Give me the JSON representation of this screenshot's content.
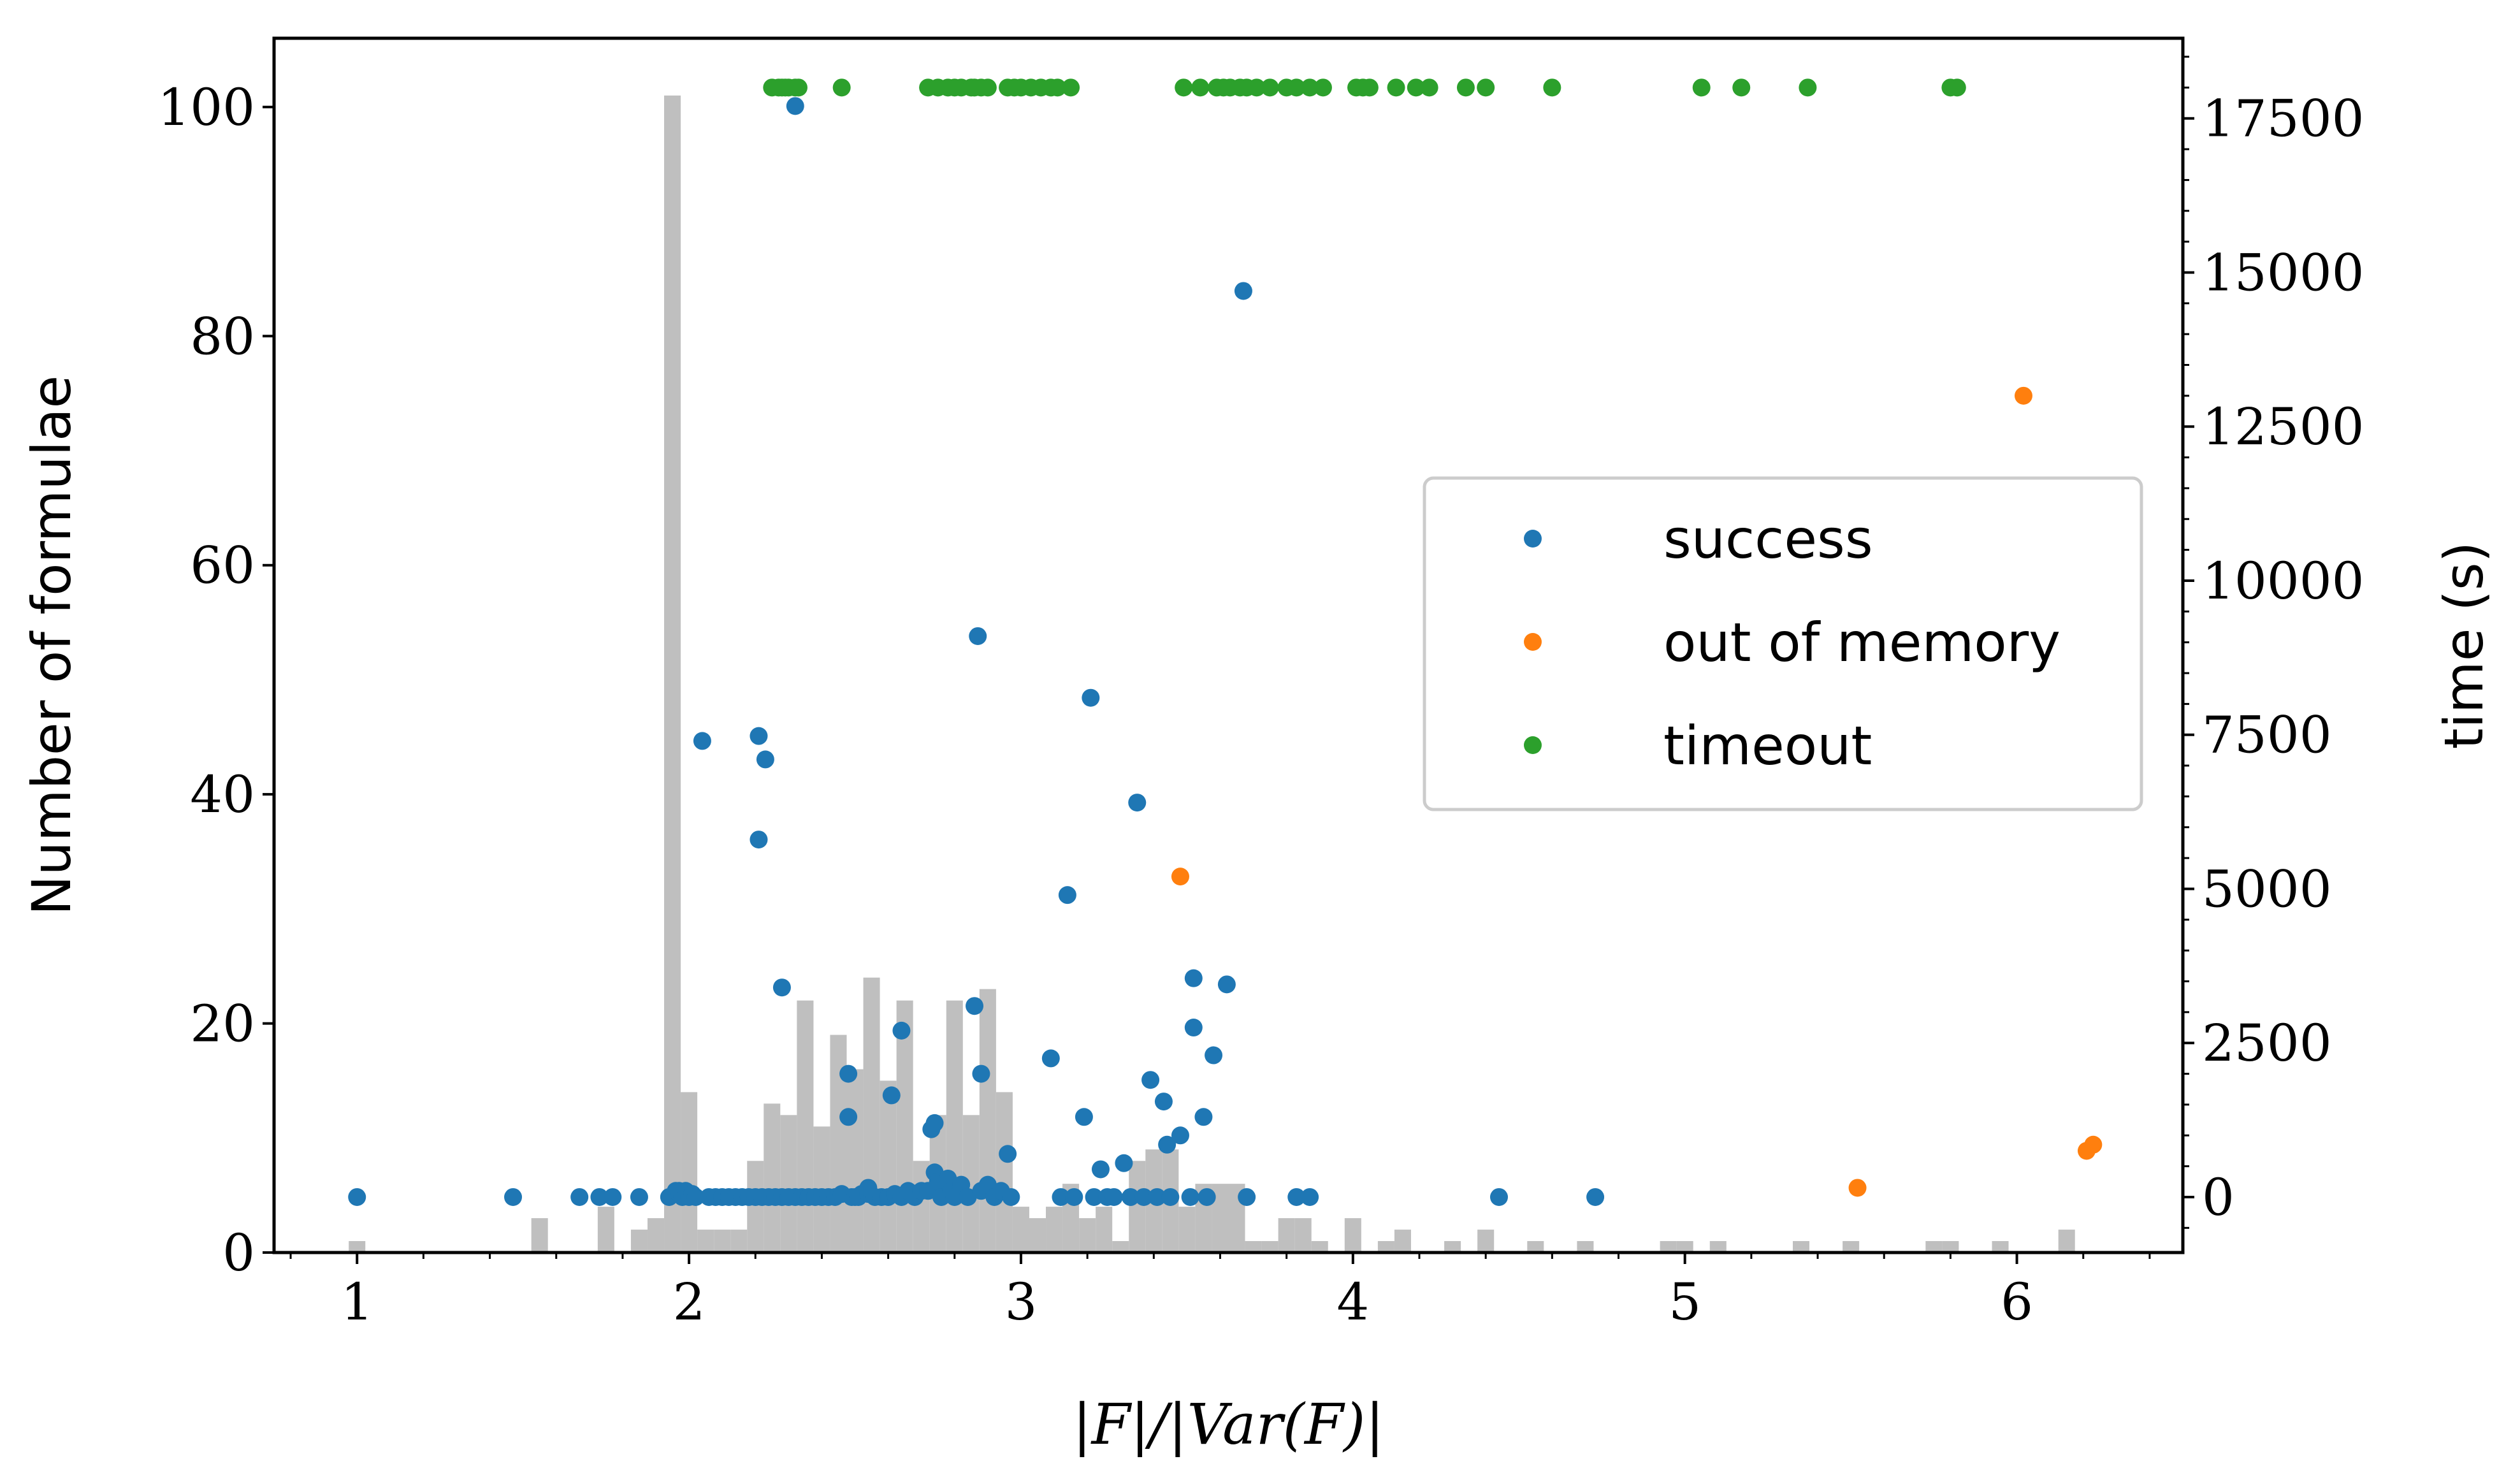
{
  "chart_data": {
    "type": "scatter",
    "xlabel": "|F|/|Var(F)|",
    "ylabel_left": "Number of formulae",
    "ylabel_right": "time (s)",
    "xlim": [
      0.75,
      6.5
    ],
    "ylim_left": [
      0,
      106
    ],
    "ylim_right": [
      -900,
      18800
    ],
    "x_ticks": [
      1,
      2,
      3,
      4,
      5,
      6
    ],
    "x_tick_labels": [
      "1",
      "2",
      "3",
      "4",
      "5",
      "6"
    ],
    "y_left_ticks": [
      0,
      20,
      40,
      60,
      80,
      100
    ],
    "y_left_tick_labels": [
      "0",
      "20",
      "40",
      "60",
      "80",
      "100"
    ],
    "y_right_ticks": [
      0,
      2500,
      5000,
      7500,
      10000,
      12500,
      15000,
      17500
    ],
    "y_right_tick_labels": [
      "0",
      "2500",
      "5000",
      "7500",
      "10000",
      "12500",
      "15000",
      "17500"
    ],
    "grid": false,
    "legend_position": "center-right",
    "histogram": {
      "color": "#bfbfbf",
      "bin_width": 0.05,
      "bins": [
        [
          1.0,
          1
        ],
        [
          1.55,
          3
        ],
        [
          1.75,
          4
        ],
        [
          1.85,
          2
        ],
        [
          1.9,
          3
        ],
        [
          1.95,
          101
        ],
        [
          2.0,
          14
        ],
        [
          2.05,
          2
        ],
        [
          2.1,
          2
        ],
        [
          2.15,
          2
        ],
        [
          2.2,
          8
        ],
        [
          2.25,
          13
        ],
        [
          2.3,
          12
        ],
        [
          2.35,
          22
        ],
        [
          2.4,
          11
        ],
        [
          2.45,
          19
        ],
        [
          2.5,
          16
        ],
        [
          2.55,
          24
        ],
        [
          2.6,
          15
        ],
        [
          2.65,
          22
        ],
        [
          2.7,
          8
        ],
        [
          2.75,
          12
        ],
        [
          2.8,
          22
        ],
        [
          2.85,
          12
        ],
        [
          2.9,
          23
        ],
        [
          2.95,
          14
        ],
        [
          3.0,
          4
        ],
        [
          3.05,
          3
        ],
        [
          3.1,
          4
        ],
        [
          3.15,
          6
        ],
        [
          3.2,
          3
        ],
        [
          3.25,
          4
        ],
        [
          3.3,
          1
        ],
        [
          3.35,
          8
        ],
        [
          3.4,
          9
        ],
        [
          3.45,
          9
        ],
        [
          3.5,
          4
        ],
        [
          3.55,
          6
        ],
        [
          3.6,
          6
        ],
        [
          3.65,
          6
        ],
        [
          3.7,
          1
        ],
        [
          3.75,
          1
        ],
        [
          3.8,
          3
        ],
        [
          3.85,
          3
        ],
        [
          3.9,
          1
        ],
        [
          4.0,
          3
        ],
        [
          4.1,
          1
        ],
        [
          4.15,
          2
        ],
        [
          4.3,
          1
        ],
        [
          4.4,
          2
        ],
        [
          4.55,
          1
        ],
        [
          4.7,
          1
        ],
        [
          4.95,
          1
        ],
        [
          5.0,
          1
        ],
        [
          5.1,
          1
        ],
        [
          5.35,
          1
        ],
        [
          5.5,
          1
        ],
        [
          5.75,
          1
        ],
        [
          5.8,
          1
        ],
        [
          5.95,
          1
        ],
        [
          6.15,
          2
        ]
      ]
    },
    "series": [
      {
        "name": "success",
        "color": "#1f77b4",
        "points": [
          [
            1.0,
            0
          ],
          [
            1.47,
            0
          ],
          [
            1.67,
            0
          ],
          [
            1.73,
            0
          ],
          [
            1.77,
            0
          ],
          [
            1.85,
            0
          ],
          [
            1.94,
            0
          ],
          [
            1.96,
            100
          ],
          [
            1.97,
            100
          ],
          [
            1.98,
            0
          ],
          [
            1.99,
            100
          ],
          [
            2.0,
            0
          ],
          [
            2.01,
            50
          ],
          [
            2.02,
            0
          ],
          [
            2.04,
            7400
          ],
          [
            2.06,
            0
          ],
          [
            2.08,
            0
          ],
          [
            2.1,
            0
          ],
          [
            2.12,
            0
          ],
          [
            2.14,
            0
          ],
          [
            2.16,
            0
          ],
          [
            2.18,
            0
          ],
          [
            2.2,
            0
          ],
          [
            2.21,
            7480
          ],
          [
            2.21,
            5800
          ],
          [
            2.22,
            0
          ],
          [
            2.23,
            7100
          ],
          [
            2.24,
            0
          ],
          [
            2.26,
            0
          ],
          [
            2.28,
            3400
          ],
          [
            2.28,
            0
          ],
          [
            2.3,
            0
          ],
          [
            2.32,
            17700
          ],
          [
            2.32,
            0
          ],
          [
            2.34,
            0
          ],
          [
            2.36,
            0
          ],
          [
            2.38,
            0
          ],
          [
            2.4,
            0
          ],
          [
            2.42,
            0
          ],
          [
            2.44,
            0
          ],
          [
            2.46,
            50
          ],
          [
            2.48,
            2000
          ],
          [
            2.48,
            1300
          ],
          [
            2.49,
            0
          ],
          [
            2.5,
            0
          ],
          [
            2.51,
            0
          ],
          [
            2.52,
            50
          ],
          [
            2.54,
            50
          ],
          [
            2.54,
            150
          ],
          [
            2.56,
            0
          ],
          [
            2.58,
            0
          ],
          [
            2.6,
            0
          ],
          [
            2.61,
            1650
          ],
          [
            2.62,
            50
          ],
          [
            2.64,
            2700
          ],
          [
            2.64,
            0
          ],
          [
            2.66,
            100
          ],
          [
            2.68,
            0
          ],
          [
            2.7,
            100
          ],
          [
            2.72,
            100
          ],
          [
            2.73,
            1100
          ],
          [
            2.74,
            1200
          ],
          [
            2.74,
            400
          ],
          [
            2.75,
            250
          ],
          [
            2.76,
            0
          ],
          [
            2.78,
            300
          ],
          [
            2.79,
            100
          ],
          [
            2.8,
            0
          ],
          [
            2.82,
            200
          ],
          [
            2.84,
            0
          ],
          [
            2.86,
            3100
          ],
          [
            2.87,
            9100
          ],
          [
            2.88,
            2000
          ],
          [
            2.88,
            100
          ],
          [
            2.9,
            200
          ],
          [
            2.92,
            0
          ],
          [
            2.94,
            100
          ],
          [
            2.96,
            700
          ],
          [
            2.97,
            0
          ],
          [
            3.09,
            2250
          ],
          [
            3.12,
            0
          ],
          [
            3.14,
            4900
          ],
          [
            3.16,
            0
          ],
          [
            3.19,
            1300
          ],
          [
            3.21,
            8100
          ],
          [
            3.22,
            0
          ],
          [
            3.24,
            450
          ],
          [
            3.26,
            0
          ],
          [
            3.28,
            0
          ],
          [
            3.31,
            550
          ],
          [
            3.33,
            0
          ],
          [
            3.35,
            6400
          ],
          [
            3.37,
            0
          ],
          [
            3.39,
            1900
          ],
          [
            3.41,
            0
          ],
          [
            3.43,
            1550
          ],
          [
            3.44,
            850
          ],
          [
            3.45,
            0
          ],
          [
            3.48,
            1000
          ],
          [
            3.51,
            0
          ],
          [
            3.52,
            3550
          ],
          [
            3.52,
            2750
          ],
          [
            3.55,
            1300
          ],
          [
            3.56,
            0
          ],
          [
            3.58,
            2300
          ],
          [
            3.62,
            3450
          ],
          [
            3.67,
            14700
          ],
          [
            3.68,
            0
          ],
          [
            3.83,
            0
          ],
          [
            3.87,
            0
          ],
          [
            4.44,
            0
          ],
          [
            4.73,
            0
          ]
        ]
      },
      {
        "name": "out of memory",
        "color": "#ff7f0e",
        "points": [
          [
            3.48,
            5200
          ],
          [
            5.52,
            150
          ],
          [
            6.02,
            13000
          ],
          [
            6.21,
            750
          ],
          [
            6.23,
            850
          ]
        ]
      },
      {
        "name": "timeout",
        "color": "#2ca02c",
        "points": [
          [
            2.25,
            18000
          ],
          [
            2.27,
            18000
          ],
          [
            2.28,
            18000
          ],
          [
            2.29,
            18000
          ],
          [
            2.3,
            18000
          ],
          [
            2.32,
            18000
          ],
          [
            2.33,
            18000
          ],
          [
            2.46,
            18000
          ],
          [
            2.72,
            18000
          ],
          [
            2.75,
            18000
          ],
          [
            2.78,
            18000
          ],
          [
            2.8,
            18000
          ],
          [
            2.82,
            18000
          ],
          [
            2.85,
            18000
          ],
          [
            2.86,
            18000
          ],
          [
            2.88,
            18000
          ],
          [
            2.9,
            18000
          ],
          [
            2.96,
            18000
          ],
          [
            2.98,
            18000
          ],
          [
            3.0,
            18000
          ],
          [
            3.03,
            18000
          ],
          [
            3.06,
            18000
          ],
          [
            3.09,
            18000
          ],
          [
            3.11,
            18000
          ],
          [
            3.15,
            18000
          ],
          [
            3.49,
            18000
          ],
          [
            3.54,
            18000
          ],
          [
            3.59,
            18000
          ],
          [
            3.61,
            18000
          ],
          [
            3.63,
            18000
          ],
          [
            3.66,
            18000
          ],
          [
            3.68,
            18000
          ],
          [
            3.71,
            18000
          ],
          [
            3.75,
            18000
          ],
          [
            3.8,
            18000
          ],
          [
            3.83,
            18000
          ],
          [
            3.87,
            18000
          ],
          [
            3.91,
            18000
          ],
          [
            4.01,
            18000
          ],
          [
            4.03,
            18000
          ],
          [
            4.05,
            18000
          ],
          [
            4.13,
            18000
          ],
          [
            4.19,
            18000
          ],
          [
            4.23,
            18000
          ],
          [
            4.34,
            18000
          ],
          [
            4.4,
            18000
          ],
          [
            4.6,
            18000
          ],
          [
            5.05,
            18000
          ],
          [
            5.17,
            18000
          ],
          [
            5.37,
            18000
          ],
          [
            5.8,
            18000
          ],
          [
            5.82,
            18000
          ]
        ]
      }
    ]
  }
}
